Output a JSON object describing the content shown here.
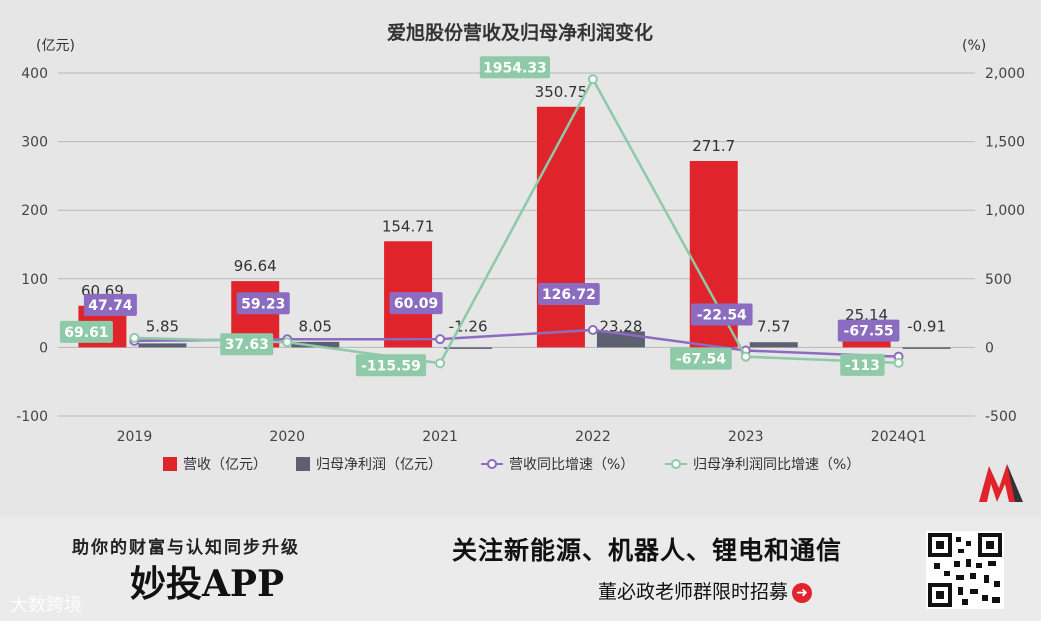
{
  "chart_data": {
    "type": "bar+line",
    "title": "爱旭股份营收及归母净利润变化",
    "left_axis_unit": "(亿元)",
    "right_axis_unit": "(%)",
    "categories": [
      "2019",
      "2020",
      "2021",
      "2022",
      "2023",
      "2024Q1"
    ],
    "left_ylim": [
      -100,
      400
    ],
    "left_ticks": [
      "400",
      "300",
      "200",
      "100",
      "0",
      "-100"
    ],
    "right_ylim": [
      -500,
      2000
    ],
    "right_ticks": [
      "2,000",
      "1,500",
      "1,000",
      "500",
      "0",
      "-500"
    ],
    "bar_series": [
      {
        "name": "营收（亿元）",
        "color": "#e0242b",
        "values": [
          60.69,
          96.64,
          154.71,
          350.75,
          271.7,
          25.14
        ],
        "labels": [
          "60.69",
          "96.64",
          "154.71",
          "350.75",
          "271.7",
          "25.14"
        ]
      },
      {
        "name": "归母净利润（亿元）",
        "color": "#5c6070",
        "values": [
          5.85,
          8.05,
          -1.26,
          23.28,
          7.57,
          -0.91
        ],
        "labels": [
          "5.85",
          "8.05",
          "-1.26",
          "23.28",
          "7.57",
          "-0.91"
        ]
      }
    ],
    "line_series": [
      {
        "name": "营收同比增速（%）",
        "color": "#8b6cc0",
        "values": [
          47.74,
          59.23,
          60.09,
          126.72,
          -22.54,
          -67.55
        ],
        "labels": [
          "47.74",
          "59.23",
          "60.09",
          "126.72",
          "-22.54",
          "-67.55"
        ]
      },
      {
        "name": "归母净利润同比增速（%）",
        "color": "#8ec9a8",
        "values": [
          69.61,
          37.63,
          -115.59,
          1954.33,
          -67.54,
          -113
        ],
        "labels": [
          "69.61",
          "37.63",
          "-115.59",
          "1954.33",
          "-67.54",
          "-113"
        ]
      }
    ],
    "legend_position": "bottom"
  },
  "footer": {
    "slogan": "助你的财富与认知同步升级",
    "app_name": "妙投APP",
    "promo": "关注新能源、机器人、锂电和通信",
    "promo_sub": "董必政老师群限时招募",
    "watermark": "大数跨境"
  }
}
